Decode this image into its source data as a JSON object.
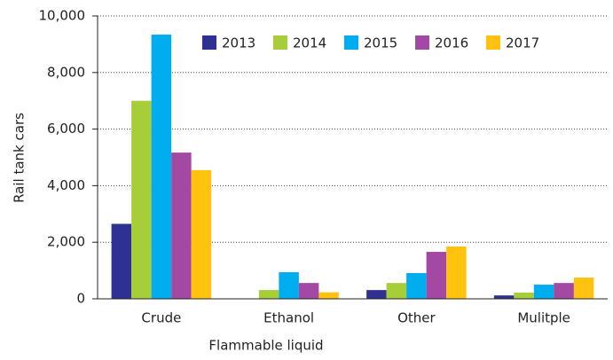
{
  "chart_data": {
    "type": "bar",
    "xlabel": "Flammable liquid",
    "ylabel": "Rail tank cars",
    "categories": [
      "Crude",
      "Ethanol",
      "Other",
      "Mulitple"
    ],
    "series": [
      {
        "name": "2013",
        "color": "#2e3192",
        "values": [
          2650,
          0,
          310,
          120
        ]
      },
      {
        "name": "2014",
        "color": "#a6ce39",
        "values": [
          7000,
          310,
          560,
          220
        ]
      },
      {
        "name": "2015",
        "color": "#00aeef",
        "values": [
          9340,
          940,
          910,
          500
        ]
      },
      {
        "name": "2016",
        "color": "#a349a4",
        "values": [
          5170,
          560,
          1660,
          560
        ]
      },
      {
        "name": "2017",
        "color": "#ffc20e",
        "values": [
          4550,
          230,
          1850,
          750
        ]
      }
    ],
    "ylim": [
      0,
      10000
    ],
    "yticks": [
      0,
      {
        "value": 2000,
        "label": "2,000"
      },
      {
        "value": 4000,
        "label": "4,000"
      },
      {
        "value": 6000,
        "label": "6,000"
      },
      {
        "value": 8000,
        "label": "8,000"
      },
      {
        "value": 10000,
        "label": "10,000"
      }
    ],
    "grid": true,
    "legend": "top"
  }
}
